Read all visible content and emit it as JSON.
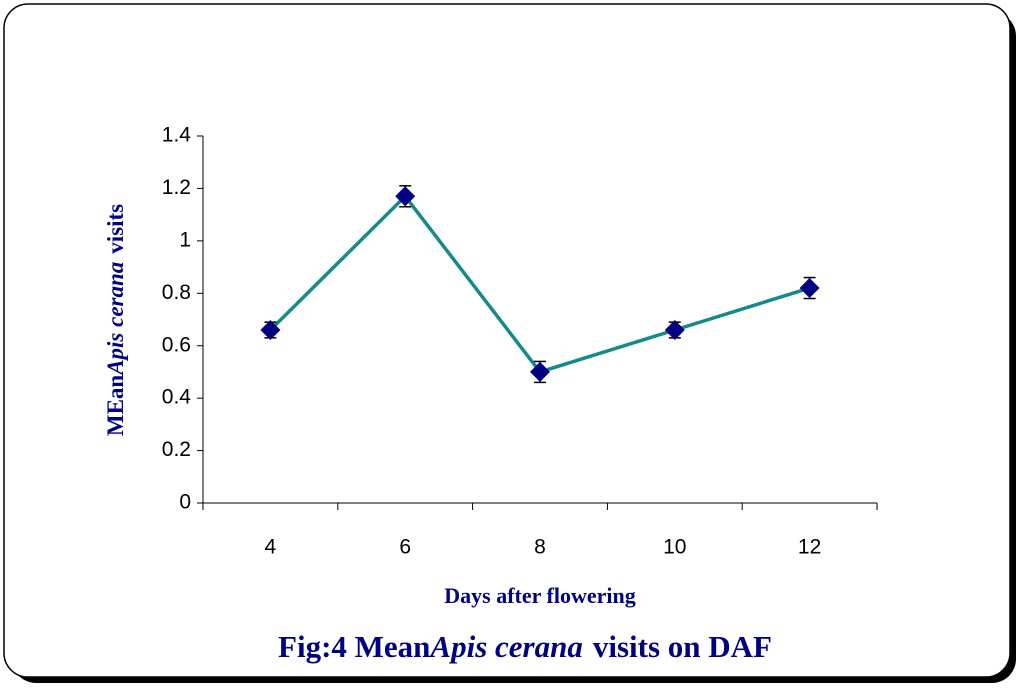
{
  "chart_data": {
    "type": "line",
    "title": [
      "Fig:4 Mean",
      "Apis cerana",
      "visits on DAF"
    ],
    "x_label": "Days after flowering",
    "y_label": [
      "MEan",
      "Apis cerana",
      "visits"
    ],
    "categories": [
      "4",
      "6",
      "8",
      "10",
      "12"
    ],
    "values": [
      0.66,
      1.17,
      0.5,
      0.66,
      0.82
    ],
    "errors": [
      0.03,
      0.04,
      0.04,
      0.03,
      0.04
    ],
    "line_color": "#158a8a",
    "marker_color": "#000080",
    "ylim": [
      0,
      1.4
    ],
    "yticks": [
      0,
      0.2,
      0.4,
      0.6,
      0.8,
      1,
      1.2,
      1.4
    ]
  }
}
